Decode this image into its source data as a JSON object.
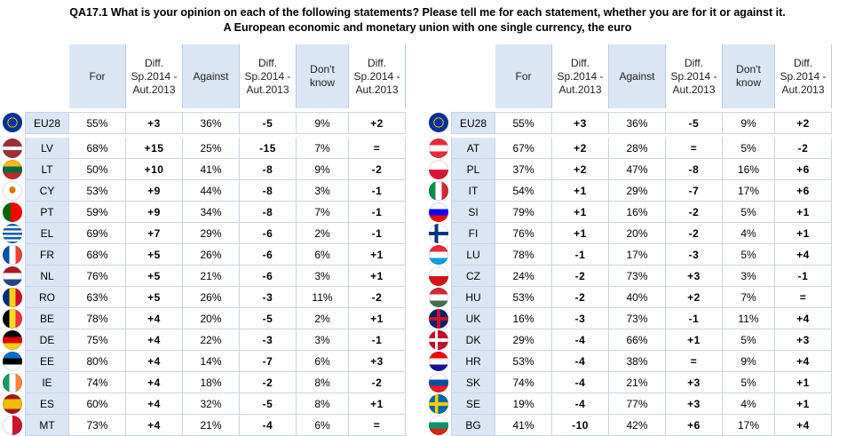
{
  "title_line1": "QA17.1 What is your opinion on each of the following statements? Please tell me for each statement, whether you are for it or against it.",
  "title_line2": "A European economic and monetary union with one single currency, the euro",
  "headers": {
    "for": "For",
    "diff": "Diff. Sp.2014 - Aut.2013",
    "against": "Against",
    "dontknow": "Don't know"
  },
  "left": {
    "eu": {
      "code": "EU28",
      "flag": "eu-flag-icon",
      "for": "55%",
      "for_diff": "+3",
      "against": "36%",
      "against_diff": "-5",
      "dk": "9%",
      "dk_diff": "+2"
    },
    "rows": [
      {
        "code": "LV",
        "flag": "latvia-flag-icon",
        "for": "68%",
        "for_diff": "+15",
        "against": "25%",
        "against_diff": "-15",
        "dk": "7%",
        "dk_diff": "="
      },
      {
        "code": "LT",
        "flag": "lithuania-flag-icon",
        "for": "50%",
        "for_diff": "+10",
        "against": "41%",
        "against_diff": "-8",
        "dk": "9%",
        "dk_diff": "-2"
      },
      {
        "code": "CY",
        "flag": "cyprus-flag-icon",
        "for": "53%",
        "for_diff": "+9",
        "against": "44%",
        "against_diff": "-8",
        "dk": "3%",
        "dk_diff": "-1"
      },
      {
        "code": "PT",
        "flag": "portugal-flag-icon",
        "for": "59%",
        "for_diff": "+9",
        "against": "34%",
        "against_diff": "-8",
        "dk": "7%",
        "dk_diff": "-1"
      },
      {
        "code": "EL",
        "flag": "greece-flag-icon",
        "for": "69%",
        "for_diff": "+7",
        "against": "29%",
        "against_diff": "-6",
        "dk": "2%",
        "dk_diff": "-1"
      },
      {
        "code": "FR",
        "flag": "france-flag-icon",
        "for": "68%",
        "for_diff": "+5",
        "against": "26%",
        "against_diff": "-6",
        "dk": "6%",
        "dk_diff": "+1"
      },
      {
        "code": "NL",
        "flag": "netherlands-flag-icon",
        "for": "76%",
        "for_diff": "+5",
        "against": "21%",
        "against_diff": "-6",
        "dk": "3%",
        "dk_diff": "+1"
      },
      {
        "code": "RO",
        "flag": "romania-flag-icon",
        "for": "63%",
        "for_diff": "+5",
        "against": "26%",
        "against_diff": "-3",
        "dk": "11%",
        "dk_diff": "-2"
      },
      {
        "code": "BE",
        "flag": "belgium-flag-icon",
        "for": "78%",
        "for_diff": "+4",
        "against": "20%",
        "against_diff": "-5",
        "dk": "2%",
        "dk_diff": "+1"
      },
      {
        "code": "DE",
        "flag": "germany-flag-icon",
        "for": "75%",
        "for_diff": "+4",
        "against": "22%",
        "against_diff": "-3",
        "dk": "3%",
        "dk_diff": "-1"
      },
      {
        "code": "EE",
        "flag": "estonia-flag-icon",
        "for": "80%",
        "for_diff": "+4",
        "against": "14%",
        "against_diff": "-7",
        "dk": "6%",
        "dk_diff": "+3"
      },
      {
        "code": "IE",
        "flag": "ireland-flag-icon",
        "for": "74%",
        "for_diff": "+4",
        "against": "18%",
        "against_diff": "-2",
        "dk": "8%",
        "dk_diff": "-2"
      },
      {
        "code": "ES",
        "flag": "spain-flag-icon",
        "for": "60%",
        "for_diff": "+4",
        "against": "32%",
        "against_diff": "-5",
        "dk": "8%",
        "dk_diff": "+1"
      },
      {
        "code": "MT",
        "flag": "malta-flag-icon",
        "for": "73%",
        "for_diff": "+4",
        "against": "21%",
        "against_diff": "-4",
        "dk": "6%",
        "dk_diff": "="
      }
    ]
  },
  "right": {
    "eu": {
      "code": "EU28",
      "flag": "eu-flag-icon",
      "for": "55%",
      "for_diff": "+3",
      "against": "36%",
      "against_diff": "-5",
      "dk": "9%",
      "dk_diff": "+2"
    },
    "rows": [
      {
        "code": "AT",
        "flag": "austria-flag-icon",
        "for": "67%",
        "for_diff": "+2",
        "against": "28%",
        "against_diff": "=",
        "dk": "5%",
        "dk_diff": "-2"
      },
      {
        "code": "PL",
        "flag": "poland-flag-icon",
        "for": "37%",
        "for_diff": "+2",
        "against": "47%",
        "against_diff": "-8",
        "dk": "16%",
        "dk_diff": "+6"
      },
      {
        "code": "IT",
        "flag": "italy-flag-icon",
        "for": "54%",
        "for_diff": "+1",
        "against": "29%",
        "against_diff": "-7",
        "dk": "17%",
        "dk_diff": "+6"
      },
      {
        "code": "SI",
        "flag": "slovenia-flag-icon",
        "for": "79%",
        "for_diff": "+1",
        "against": "16%",
        "against_diff": "-2",
        "dk": "5%",
        "dk_diff": "+1"
      },
      {
        "code": "FI",
        "flag": "finland-flag-icon",
        "for": "76%",
        "for_diff": "+1",
        "against": "20%",
        "against_diff": "-2",
        "dk": "4%",
        "dk_diff": "+1"
      },
      {
        "code": "LU",
        "flag": "luxembourg-flag-icon",
        "for": "78%",
        "for_diff": "-1",
        "against": "17%",
        "against_diff": "-3",
        "dk": "5%",
        "dk_diff": "+4"
      },
      {
        "code": "CZ",
        "flag": "czechia-flag-icon",
        "for": "24%",
        "for_diff": "-2",
        "against": "73%",
        "against_diff": "+3",
        "dk": "3%",
        "dk_diff": "-1"
      },
      {
        "code": "HU",
        "flag": "hungary-flag-icon",
        "for": "53%",
        "for_diff": "-2",
        "against": "40%",
        "against_diff": "+2",
        "dk": "7%",
        "dk_diff": "="
      },
      {
        "code": "UK",
        "flag": "uk-flag-icon",
        "for": "16%",
        "for_diff": "-3",
        "against": "73%",
        "against_diff": "-1",
        "dk": "11%",
        "dk_diff": "+4"
      },
      {
        "code": "DK",
        "flag": "denmark-flag-icon",
        "for": "29%",
        "for_diff": "-4",
        "against": "66%",
        "against_diff": "+1",
        "dk": "5%",
        "dk_diff": "+3"
      },
      {
        "code": "HR",
        "flag": "croatia-flag-icon",
        "for": "53%",
        "for_diff": "-4",
        "against": "38%",
        "against_diff": "=",
        "dk": "9%",
        "dk_diff": "+4"
      },
      {
        "code": "SK",
        "flag": "slovakia-flag-icon",
        "for": "74%",
        "for_diff": "-4",
        "against": "21%",
        "against_diff": "+3",
        "dk": "5%",
        "dk_diff": "+1"
      },
      {
        "code": "SE",
        "flag": "sweden-flag-icon",
        "for": "19%",
        "for_diff": "-4",
        "against": "77%",
        "against_diff": "+3",
        "dk": "4%",
        "dk_diff": "+1"
      },
      {
        "code": "BG",
        "flag": "bulgaria-flag-icon",
        "for": "41%",
        "for_diff": "-10",
        "against": "42%",
        "against_diff": "+6",
        "dk": "17%",
        "dk_diff": "+4"
      }
    ]
  }
}
